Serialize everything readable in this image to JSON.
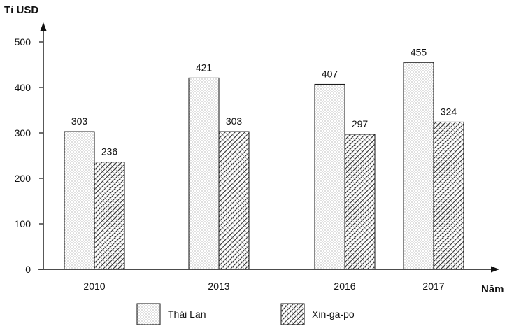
{
  "chart_data": {
    "type": "bar",
    "ylabel": "Tỉ USD",
    "xlabel": "Năm",
    "categories": [
      "2010",
      "2013",
      "2016",
      "2017"
    ],
    "y_ticks": [
      0,
      100,
      200,
      300,
      400,
      500
    ],
    "ylim": [
      0,
      500
    ],
    "grid": false,
    "legend_position": "bottom",
    "series": [
      {
        "name": "Thái Lan",
        "values": [
          303,
          421,
          407,
          455
        ],
        "pattern": "dots"
      },
      {
        "name": "Xin-ga-po",
        "values": [
          236,
          303,
          297,
          324
        ],
        "pattern": "hatch"
      }
    ]
  }
}
